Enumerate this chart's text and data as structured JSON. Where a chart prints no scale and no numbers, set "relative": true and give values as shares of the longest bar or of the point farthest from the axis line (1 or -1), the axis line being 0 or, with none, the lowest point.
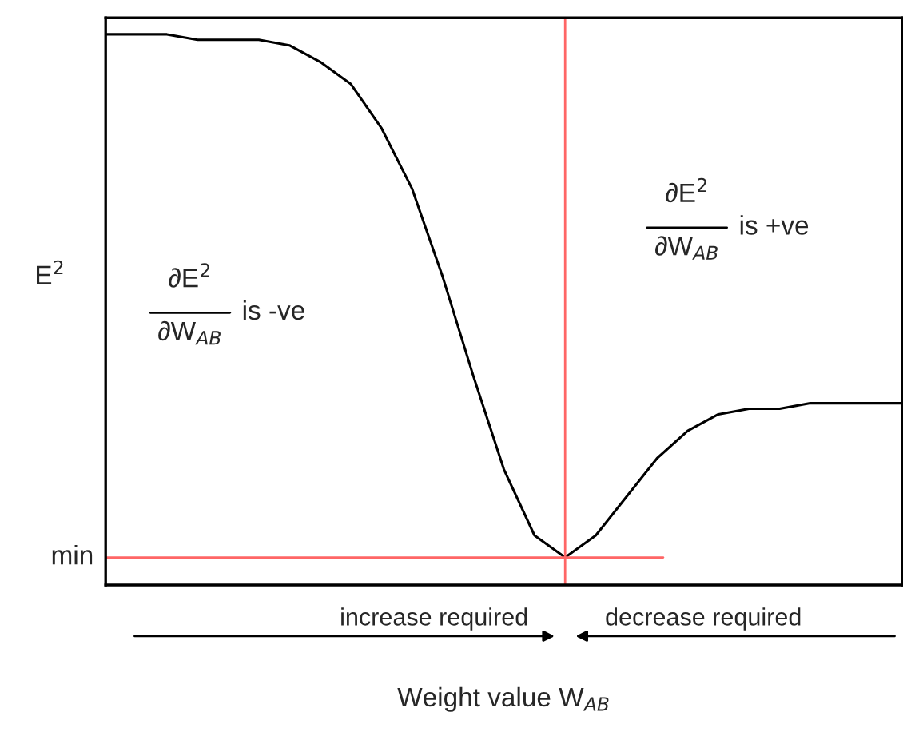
{
  "chart_data": {
    "type": "line",
    "relative": true,
    "xlabel": "Weight value W$_{AB}$",
    "ylabel": "E$^{2}$",
    "categories": [
      null,
      null,
      null,
      null,
      null,
      null,
      null,
      null,
      null,
      null,
      null,
      null,
      null,
      null,
      null,
      null,
      null,
      null,
      null,
      null,
      null,
      null,
      null,
      null,
      null,
      null,
      null
    ],
    "series": [
      {
        "color": "#000000",
        "values": [
          1.0,
          1.0,
          1.0,
          0.99,
          0.99,
          0.99,
          0.98,
          0.95,
          0.91,
          0.83,
          0.72,
          0.56,
          0.38,
          0.21,
          0.09,
          0.05,
          0.09,
          0.16,
          0.23,
          0.28,
          0.31,
          0.32,
          0.32,
          0.33,
          0.33,
          0.33,
          0.33
        ]
      }
    ],
    "ref_lines": [
      {
        "axis": "y",
        "value": 0.05,
        "label": "min",
        "color": "#ff6666"
      }
    ],
    "annotations": [
      "∂E$^{2}$",
      "∂W$_{AB}$",
      "is -ve",
      "∂E$^{2}$",
      "∂W$_{AB}$",
      "is +ve",
      "increase required",
      "decrease required"
    ],
    "grid": false,
    "legend": false,
    "tick_labels": false
  }
}
